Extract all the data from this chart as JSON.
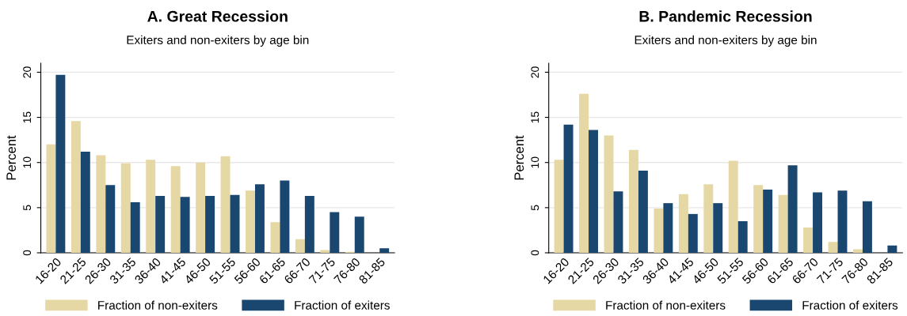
{
  "chart_data": [
    {
      "type": "bar",
      "title": "A. Great Recession",
      "subtitle": "Exiters and non-exiters by age bin",
      "ylabel": "Percent",
      "categories": [
        "16-20",
        "21-25",
        "26-30",
        "31-35",
        "36-40",
        "41-45",
        "46-50",
        "51-55",
        "56-60",
        "61-65",
        "66-70",
        "71-75",
        "76-80",
        "81-85"
      ],
      "series": [
        {
          "name": "Fraction of non-exiters",
          "color": "#e5d8a4",
          "values": [
            12.0,
            14.6,
            10.8,
            9.9,
            10.3,
            9.6,
            10.0,
            10.7,
            6.9,
            3.4,
            1.5,
            0.3,
            0.1,
            0
          ]
        },
        {
          "name": "Fraction of exiters",
          "color": "#1a476f",
          "values": [
            19.7,
            11.2,
            7.5,
            5.6,
            6.3,
            6.2,
            6.3,
            6.4,
            7.6,
            8.0,
            6.3,
            4.5,
            4.0,
            0.5
          ]
        }
      ],
      "ylim": [
        0,
        21
      ],
      "yticks": [
        0,
        5,
        10,
        15,
        20
      ],
      "grid": "y",
      "legend": "bottom"
    },
    {
      "type": "bar",
      "title": "B. Pandemic Recession",
      "subtitle": "Exiters and non-exiters by age bin",
      "ylabel": "Percent",
      "categories": [
        "16-20",
        "21-25",
        "26-30",
        "31-35",
        "36-40",
        "41-45",
        "46-50",
        "51-55",
        "56-60",
        "61-65",
        "66-70",
        "71-75",
        "76-80",
        "81-85"
      ],
      "series": [
        {
          "name": "Fraction of non-exiters",
          "color": "#e5d8a4",
          "values": [
            10.3,
            17.6,
            13.0,
            11.4,
            4.9,
            6.5,
            7.6,
            10.2,
            7.5,
            6.4,
            2.8,
            1.2,
            0.4,
            0
          ]
        },
        {
          "name": "Fraction of exiters",
          "color": "#1a476f",
          "values": [
            14.2,
            13.6,
            6.8,
            9.1,
            5.5,
            4.3,
            5.5,
            3.5,
            7.0,
            9.7,
            6.7,
            6.9,
            5.7,
            0.8
          ]
        }
      ],
      "ylim": [
        0,
        21
      ],
      "yticks": [
        0,
        5,
        10,
        15,
        20
      ],
      "grid": "y",
      "legend": "bottom"
    }
  ]
}
